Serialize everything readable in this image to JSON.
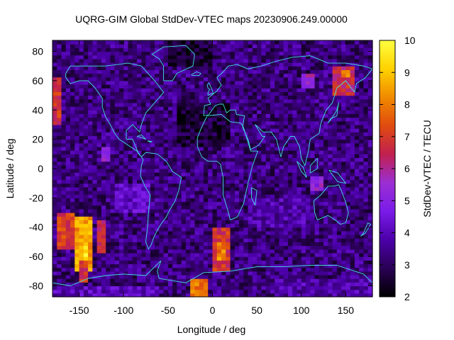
{
  "chart_data": {
    "type": "heatmap",
    "title": "UQRG-GIM Global StdDev-VTEC maps 20230906.249.00000",
    "xlabel": "Longitude / deg",
    "ylabel": "Latitude / deg",
    "colorbar_label": "StdDev-VTEC / TECU",
    "xlim": [
      -180,
      180
    ],
    "ylim": [
      -87.5,
      87.5
    ],
    "zlim": [
      2,
      10
    ],
    "x_ticks": [
      -150,
      -100,
      -50,
      0,
      50,
      100,
      150
    ],
    "y_ticks": [
      -80,
      -60,
      -40,
      -20,
      0,
      20,
      40,
      60,
      80
    ],
    "colorbar_ticks": [
      2,
      3,
      4,
      5,
      6,
      7,
      8,
      9,
      10
    ],
    "x_tick_labels": [
      "-150",
      "-100",
      "-50",
      "0",
      "50",
      "100",
      "150"
    ],
    "y_tick_labels": [
      "-80",
      "-60",
      "-40",
      "-20",
      "0",
      "20",
      "40",
      "60",
      "80"
    ],
    "colorbar_tick_labels": [
      "2",
      "3",
      "4",
      "5",
      "6",
      "7",
      "8",
      "9",
      "10"
    ],
    "grid": false,
    "colormap": [
      "#000000",
      "#2a0055",
      "#4b00a8",
      "#7a1be8",
      "#9b2fd3",
      "#c0204f",
      "#e04b10",
      "#f08a00",
      "#ffd200",
      "#ffff40"
    ],
    "coastline_color": "#40e0e0",
    "lon_step": 5,
    "lat_step": 2.5,
    "background_value": 3.3,
    "regions": [
      {
        "lon": [
          -180,
          -170
        ],
        "lat": [
          30,
          62
        ],
        "value": 6.8
      },
      {
        "lon": [
          -175,
          -155
        ],
        "lat": [
          -55,
          -30
        ],
        "value": 7.0
      },
      {
        "lon": [
          -155,
          -135
        ],
        "lat": [
          -70,
          -32
        ],
        "value": 8.4
      },
      {
        "lon": [
          -145,
          -140
        ],
        "lat": [
          -62,
          -52
        ],
        "value": 9.6
      },
      {
        "lon": [
          -150,
          -140
        ],
        "lat": [
          -78,
          -62
        ],
        "value": 6.8
      },
      {
        "lon": [
          -130,
          -120
        ],
        "lat": [
          -58,
          -35
        ],
        "value": 6.5
      },
      {
        "lon": [
          -125,
          -115
        ],
        "lat": [
          5,
          15
        ],
        "value": 5.2
      },
      {
        "lon": [
          -25,
          -5
        ],
        "lat": [
          -90,
          -75
        ],
        "value": 7.8
      },
      {
        "lon": [
          0,
          20
        ],
        "lat": [
          -70,
          -40
        ],
        "value": 6.8
      },
      {
        "lon": [
          5,
          15
        ],
        "lat": [
          -62,
          -50
        ],
        "value": 8.0
      },
      {
        "lon": [
          110,
          125
        ],
        "lat": [
          -15,
          -5
        ],
        "value": 5.2
      },
      {
        "lon": [
          135,
          160
        ],
        "lat": [
          50,
          70
        ],
        "value": 6.6
      },
      {
        "lon": [
          145,
          155
        ],
        "lat": [
          62,
          67
        ],
        "value": 8.0
      },
      {
        "lon": [
          100,
          115
        ],
        "lat": [
          55,
          65
        ],
        "value": 5.4
      },
      {
        "lon": [
          -50,
          0
        ],
        "lat": [
          70,
          87.5
        ],
        "value": 2.5
      },
      {
        "lon": [
          -40,
          20
        ],
        "lat": [
          15,
          45
        ],
        "value": 2.6
      },
      {
        "lon": [
          40,
          110
        ],
        "lat": [
          -40,
          -20
        ],
        "value": 3.8
      },
      {
        "lon": [
          -110,
          -70
        ],
        "lat": [
          -30,
          -10
        ],
        "value": 4.2
      },
      {
        "lon": [
          -180,
          -60
        ],
        "lat": [
          -87.5,
          -80
        ],
        "value": 4.0
      },
      {
        "lon": [
          70,
          180
        ],
        "lat": [
          -87.5,
          -75
        ],
        "value": 3.8
      }
    ]
  }
}
